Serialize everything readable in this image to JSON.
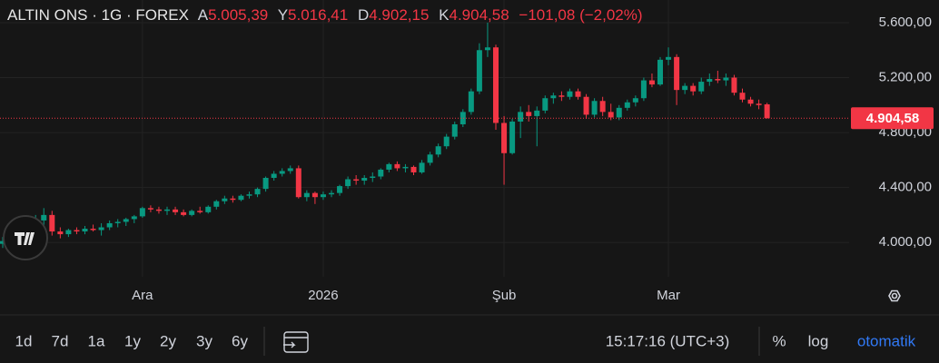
{
  "header": {
    "title": "ALTIN ONS · 1G · FOREX",
    "fields": [
      {
        "label": "A",
        "value": "5.005,39"
      },
      {
        "label": "Y",
        "value": "5.016,41"
      },
      {
        "label": "D",
        "value": "4.902,15"
      },
      {
        "label": "K",
        "value": "4.904,58"
      }
    ],
    "change": "−101,08 (−2,02%)"
  },
  "chart_data": {
    "type": "candlestick",
    "up_color": "#089981",
    "down_color": "#f23645",
    "categories": [
      null,
      null,
      null,
      null,
      null,
      null,
      null,
      null,
      null,
      null,
      null,
      null,
      null,
      null,
      null,
      null,
      null,
      "Ara",
      null,
      null,
      null,
      null,
      null,
      null,
      null,
      null,
      null,
      null,
      null,
      null,
      null,
      null,
      null,
      null,
      null,
      null,
      null,
      null,
      null,
      "2026",
      null,
      null,
      null,
      null,
      null,
      null,
      null,
      null,
      null,
      null,
      null,
      null,
      null,
      null,
      null,
      null,
      null,
      null,
      null,
      null,
      null,
      "Şub",
      null,
      null,
      null,
      null,
      null,
      null,
      null,
      null,
      null,
      null,
      null,
      null,
      null,
      null,
      null,
      null,
      null,
      null,
      null,
      "Mar",
      null,
      null,
      null,
      null,
      null,
      null,
      null,
      null,
      null,
      null,
      null,
      null
    ],
    "open": [
      3990,
      4010,
      4060,
      4100,
      4140,
      4160,
      4200,
      4080,
      4060,
      4090,
      4080,
      4100,
      4090,
      4110,
      4140,
      4150,
      4170,
      4190,
      4250,
      4240,
      4230,
      4240,
      4220,
      4200,
      4230,
      4220,
      4260,
      4300,
      4320,
      4310,
      4340,
      4350,
      4390,
      4470,
      4500,
      4520,
      4540,
      4330,
      4360,
      4330,
      4350,
      4360,
      4410,
      4460,
      4450,
      4470,
      4480,
      4530,
      4570,
      4540,
      4550,
      4510,
      4580,
      4640,
      4700,
      4770,
      4860,
      4950,
      5100,
      5400,
      5420,
      4870,
      4650,
      4880,
      4950,
      4920,
      4960,
      5050,
      5070,
      5060,
      5100,
      5060,
      4930,
      5030,
      4950,
      4910,
      4980,
      5020,
      5050,
      5180,
      5150,
      5330,
      5350,
      5110,
      5140,
      5100,
      5170,
      5190,
      5180,
      5200,
      5090,
      5040,
      5010,
      5005.39
    ],
    "high": [
      4040,
      4080,
      4120,
      4160,
      4200,
      4250,
      4230,
      4110,
      4100,
      4110,
      4120,
      4130,
      4140,
      4160,
      4170,
      4180,
      4200,
      4260,
      4270,
      4260,
      4260,
      4260,
      4240,
      4240,
      4260,
      4270,
      4310,
      4340,
      4340,
      4350,
      4370,
      4400,
      4480,
      4520,
      4540,
      4560,
      4560,
      4380,
      4370,
      4370,
      4380,
      4420,
      4480,
      4490,
      4490,
      4510,
      4540,
      4580,
      4590,
      4570,
      4560,
      4600,
      4660,
      4720,
      4790,
      4880,
      4970,
      5120,
      5450,
      5600,
      5440,
      4920,
      4900,
      4990,
      5000,
      4990,
      5070,
      5090,
      5100,
      5120,
      5120,
      5080,
      5050,
      5060,
      5010,
      5000,
      5040,
      5070,
      5200,
      5230,
      5350,
      5420,
      5370,
      5160,
      5160,
      5200,
      5230,
      5250,
      5230,
      5220,
      5120,
      5060,
      5040,
      5016.41
    ],
    "low": [
      3960,
      3990,
      4040,
      4080,
      4100,
      4120,
      4050,
      4030,
      4040,
      4060,
      4060,
      4080,
      4050,
      4090,
      4110,
      4120,
      4140,
      4180,
      4220,
      4210,
      4200,
      4200,
      4190,
      4190,
      4210,
      4210,
      4240,
      4280,
      4290,
      4300,
      4320,
      4330,
      4370,
      4450,
      4480,
      4500,
      4320,
      4300,
      4280,
      4310,
      4330,
      4340,
      4390,
      4420,
      4420,
      4440,
      4460,
      4510,
      4520,
      4510,
      4490,
      4500,
      4560,
      4620,
      4680,
      4750,
      4840,
      4930,
      5080,
      5350,
      4820,
      4420,
      4640,
      4760,
      4880,
      4700,
      4940,
      5010,
      5030,
      5040,
      5040,
      4900,
      4910,
      4920,
      4890,
      4890,
      4960,
      4990,
      5030,
      5130,
      5140,
      5290,
      5000,
      5080,
      5070,
      5080,
      5140,
      5160,
      5140,
      5070,
      5020,
      4990,
      4970,
      4902.15
    ],
    "close": [
      4010,
      4060,
      4100,
      4140,
      4160,
      4200,
      4080,
      4060,
      4090,
      4080,
      4100,
      4090,
      4110,
      4140,
      4150,
      4170,
      4190,
      4250,
      4240,
      4230,
      4240,
      4220,
      4200,
      4230,
      4220,
      4260,
      4300,
      4320,
      4310,
      4340,
      4350,
      4390,
      4470,
      4500,
      4520,
      4540,
      4330,
      4360,
      4330,
      4350,
      4360,
      4410,
      4460,
      4450,
      4470,
      4480,
      4530,
      4570,
      4540,
      4550,
      4510,
      4580,
      4640,
      4700,
      4770,
      4860,
      4950,
      5100,
      5400,
      5420,
      4870,
      4650,
      4880,
      4950,
      4920,
      4960,
      5050,
      5070,
      5060,
      5100,
      5060,
      4930,
      5030,
      4950,
      4910,
      4980,
      5020,
      5050,
      5180,
      5150,
      5330,
      5350,
      5110,
      5140,
      5100,
      5170,
      5190,
      5180,
      5200,
      5090,
      5040,
      5010,
      5000,
      4904.58
    ],
    "ylim": [
      3750,
      5765
    ],
    "yticks": [
      {
        "value": 4000,
        "label": "4.000,00"
      },
      {
        "value": 4400,
        "label": "4.400,00"
      },
      {
        "value": 4800,
        "label": "4.800,00"
      },
      {
        "value": 5200,
        "label": "5.200,00"
      },
      {
        "value": 5600,
        "label": "5.600,00"
      }
    ],
    "last_price": {
      "value": 4904.58,
      "label": "4.904,58"
    },
    "grid": true
  },
  "toolbar": {
    "ranges": [
      "1d",
      "7d",
      "1a",
      "1y",
      "2y",
      "3y",
      "6y"
    ],
    "time": "15:17:16 (UTC+3)",
    "percent": "%",
    "log": "log",
    "auto": "otomatik"
  }
}
